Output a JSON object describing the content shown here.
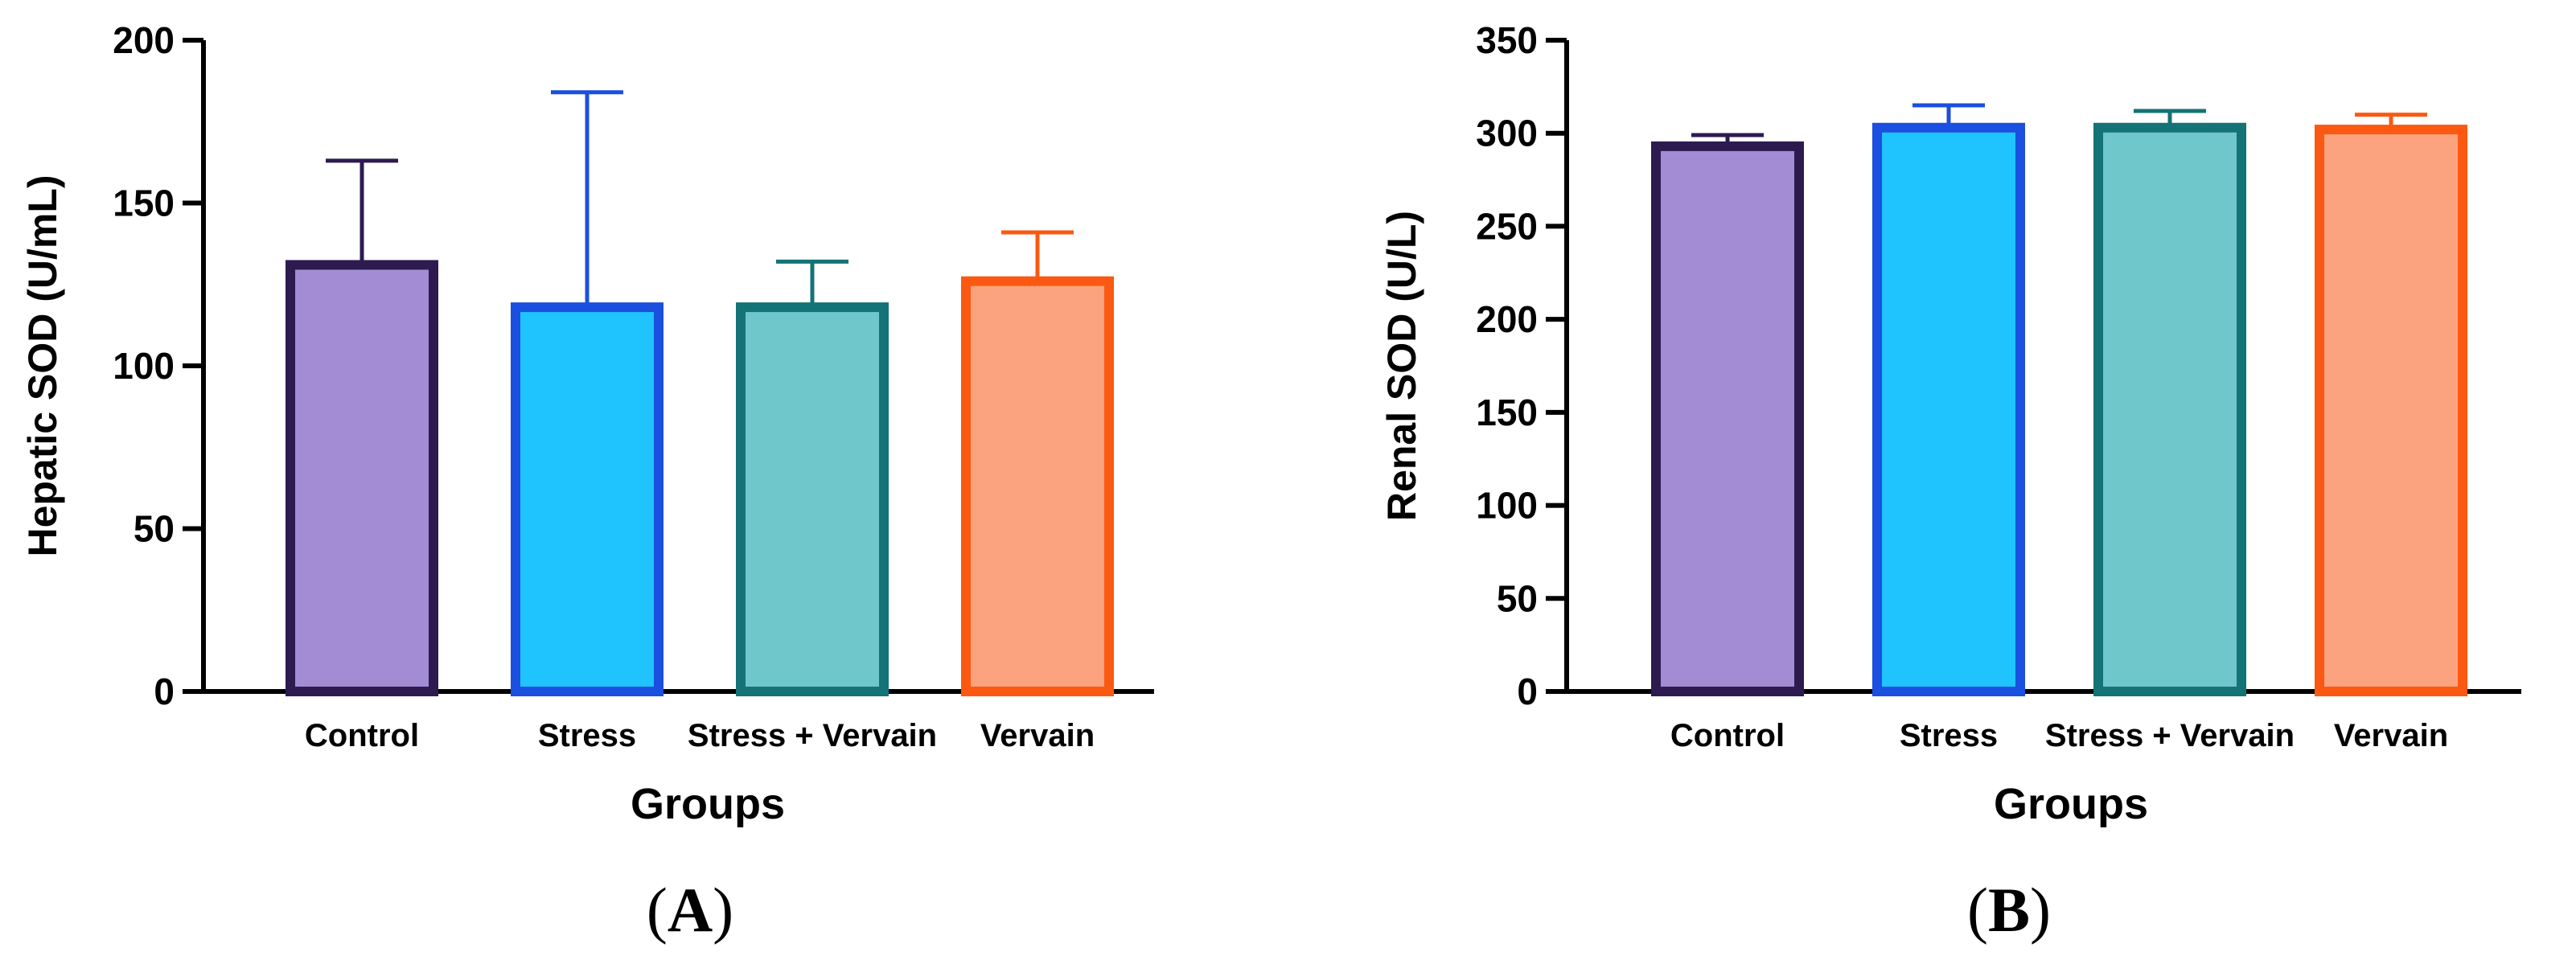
{
  "chart_data": [
    {
      "type": "bar",
      "panel": "A",
      "title": "",
      "xlabel": "Groups",
      "ylabel": "Hepatic SOD (U/mL)",
      "ylim": [
        0,
        200
      ],
      "yticks": [
        0,
        50,
        100,
        150,
        200
      ],
      "categories": [
        "Control",
        "Stress",
        "Stress + Vervain",
        "Vervain"
      ],
      "values": [
        131,
        118,
        118,
        126
      ],
      "error_upper": [
        163,
        184,
        132,
        141
      ],
      "colors": [
        {
          "fill": "#a38cd3",
          "stroke": "#2d1b50"
        },
        {
          "fill": "#1fc4ff",
          "stroke": "#1a4fe0"
        },
        {
          "fill": "#6fc7cc",
          "stroke": "#137376"
        },
        {
          "fill": "#fba37e",
          "stroke": "#fb5912"
        }
      ],
      "grid": false
    },
    {
      "type": "bar",
      "panel": "B",
      "title": "",
      "xlabel": "Groups",
      "ylabel": "Renal SOD (U/L)",
      "ylim": [
        0,
        350
      ],
      "yticks": [
        0,
        50,
        100,
        150,
        200,
        250,
        300,
        350
      ],
      "categories": [
        "Control",
        "Stress",
        "Stress + Vervain",
        "Vervain"
      ],
      "values": [
        293,
        303,
        303,
        302
      ],
      "error_upper": [
        299,
        315,
        312,
        310
      ],
      "colors": [
        {
          "fill": "#a38cd3",
          "stroke": "#2d1b50"
        },
        {
          "fill": "#1fc4ff",
          "stroke": "#1a4fe0"
        },
        {
          "fill": "#6fc7cc",
          "stroke": "#137376"
        },
        {
          "fill": "#fba37e",
          "stroke": "#fb5912"
        }
      ],
      "grid": false
    }
  ]
}
